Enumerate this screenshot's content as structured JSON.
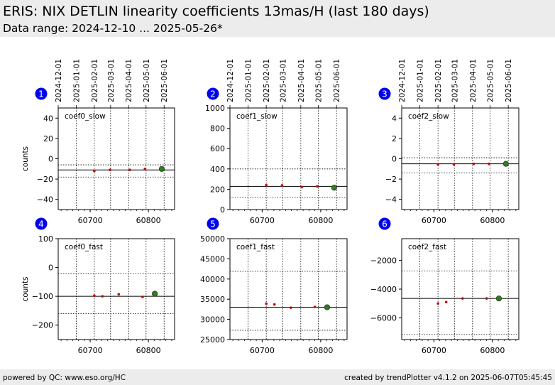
{
  "header": {
    "title": "ERIS: NIX DETLIN linearity coefficients 13mas/H (last 180 days)",
    "subtitle": "Data range: 2024-12-10 ... 2025-05-26*"
  },
  "footer": {
    "left": "powered by QC: www.eso.org/HC",
    "right": "created by trendPlotter v4.1.2 on 2025-06-07T05:45:45"
  },
  "colors": {
    "header_bg": "#ececec",
    "point_red": "#cc0000",
    "point_latest": "#2e7d1f",
    "badge": "#0000ee"
  },
  "date_ticks": [
    "2024-12-01",
    "2025-01-01",
    "2025-02-01",
    "2025-03-01",
    "2025-04-01",
    "2025-05-01",
    "2025-06-01"
  ],
  "x_ticks": [
    "60700",
    "60800"
  ],
  "chart_data": [
    {
      "id": 1,
      "type": "scatter",
      "label": "coef0_slow",
      "ylabel": "counts",
      "ylim": [
        -50,
        50
      ],
      "yticks": [
        "40",
        "20",
        "0",
        "−20",
        "−40"
      ],
      "mean": -11,
      "band": [
        -18,
        -6
      ],
      "points": [
        {
          "x": 60707,
          "y": -12
        },
        {
          "x": 60734,
          "y": -11
        },
        {
          "x": 60768,
          "y": -11
        },
        {
          "x": 60794,
          "y": -10
        }
      ],
      "latest": {
        "x": 60823,
        "y": -10
      }
    },
    {
      "id": 2,
      "type": "scatter",
      "label": "coef1_slow",
      "ylabel": "",
      "ylim": [
        0,
        1000
      ],
      "yticks": [
        "1000",
        "800",
        "600",
        "400",
        "200",
        "0"
      ],
      "mean": 228,
      "band": [
        120,
        400
      ],
      "points": [
        {
          "x": 60707,
          "y": 240
        },
        {
          "x": 60734,
          "y": 238
        },
        {
          "x": 60768,
          "y": 222
        },
        {
          "x": 60794,
          "y": 228
        }
      ],
      "latest": {
        "x": 60823,
        "y": 215
      }
    },
    {
      "id": 3,
      "type": "scatter",
      "label": "coef2_slow",
      "ylabel": "",
      "ylim": [
        -5,
        5
      ],
      "yticks": [
        "4",
        "2",
        "0",
        "−2",
        "−4"
      ],
      "mean": -0.5,
      "band": [
        -1.4,
        0.1
      ],
      "points": [
        {
          "x": 60707,
          "y": -0.55
        },
        {
          "x": 60734,
          "y": -0.55
        },
        {
          "x": 60768,
          "y": -0.5
        },
        {
          "x": 60794,
          "y": -0.5
        }
      ],
      "latest": {
        "x": 60823,
        "y": -0.5
      }
    },
    {
      "id": 4,
      "type": "scatter",
      "label": "coef0_fast",
      "ylabel": "counts",
      "ylim": [
        -250,
        100
      ],
      "yticks": [
        "100",
        "0",
        "−100",
        "−200"
      ],
      "mean": -100,
      "band": [
        -160,
        -22
      ],
      "points": [
        {
          "x": 60707,
          "y": -98
        },
        {
          "x": 60721,
          "y": -100
        },
        {
          "x": 60749,
          "y": -93
        },
        {
          "x": 60790,
          "y": -102
        }
      ],
      "latest": {
        "x": 60811,
        "y": -91
      }
    },
    {
      "id": 5,
      "type": "scatter",
      "label": "coef1_fast",
      "ylabel": "",
      "ylim": [
        25000,
        50000
      ],
      "yticks": [
        "50000",
        "45000",
        "40000",
        "35000",
        "30000",
        "25000"
      ],
      "mean": 33000,
      "band": [
        27300,
        41900
      ],
      "points": [
        {
          "x": 60707,
          "y": 33900
        },
        {
          "x": 60721,
          "y": 33700
        },
        {
          "x": 60749,
          "y": 32900
        },
        {
          "x": 60790,
          "y": 33100
        }
      ],
      "latest": {
        "x": 60811,
        "y": 33000
      }
    },
    {
      "id": 6,
      "type": "scatter",
      "label": "coef2_fast",
      "ylabel": "",
      "ylim": [
        -7500,
        -500
      ],
      "yticks": [
        "−2000",
        "−4000",
        "−6000"
      ],
      "mean": -4650,
      "band": [
        -7150,
        -2750
      ],
      "points": [
        {
          "x": 60707,
          "y": -5000
        },
        {
          "x": 60721,
          "y": -4900
        },
        {
          "x": 60749,
          "y": -4650
        },
        {
          "x": 60790,
          "y": -4650
        }
      ],
      "latest": {
        "x": 60811,
        "y": -4650
      }
    }
  ]
}
